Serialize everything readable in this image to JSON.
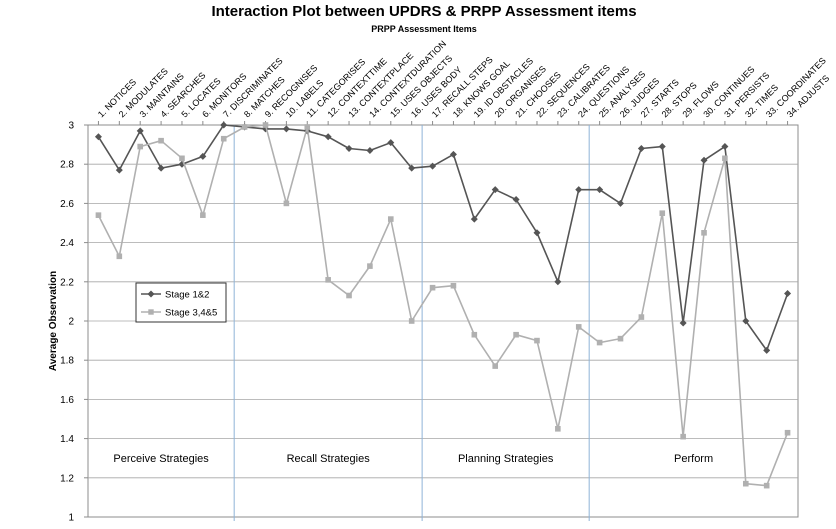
{
  "chart_data": {
    "type": "line",
    "title": "Interaction Plot between UPDRS & PRPP Assessment items",
    "subtitle": "PRPP Assessment Items",
    "xlabel": "PRPP Assessment Items",
    "ylabel": "Average Observation",
    "ylim": [
      1,
      3
    ],
    "yticks": [
      "1",
      "1.2",
      "1.4",
      "1.6",
      "1.8",
      "2",
      "2.2",
      "2.4",
      "2.6",
      "2.8",
      "3"
    ],
    "grid": true,
    "legend_position": "left-middle",
    "categories": [
      "1. NOTICES",
      "2. MODULATES",
      "3. MAINTAINS",
      "4. SEARCHES",
      "5. LOCATES",
      "6. MONITORS",
      "7. DISCRIMINATES",
      "8. MATCHES",
      "9. RECOGNISES",
      "10. LABELS",
      "11. CATEGORISES",
      "12. CONTEXTTIME",
      "13. CONTEXTPLACE",
      "14. CONTEXTDURATION",
      "15. USES OBJECTS",
      "16. USES BODY",
      "17. RECALL STEPS",
      "18. KNOWS GOAL",
      "19. ID OBSTACLES",
      "20. ORGANISES",
      "21. CHOOSES",
      "22. SEQUENCES",
      "23. CALIBRATES",
      "24. QUESTIONS",
      "25. ANALYSES",
      "26. JUDGES",
      "27. STARTS",
      "28. STOPS",
      "29. FLOWS",
      "30. CONTINUES",
      "31. PERSISTS",
      "32. TIMES",
      "33. COORDINATES",
      "34. ADJUSTS"
    ],
    "series": [
      {
        "name": "Stage 1&2",
        "color": "#555555",
        "marker": "diamond",
        "values": [
          2.94,
          2.77,
          2.97,
          2.78,
          2.8,
          2.84,
          3.0,
          2.99,
          2.98,
          2.98,
          2.97,
          2.94,
          2.88,
          2.87,
          2.91,
          2.78,
          2.79,
          2.85,
          2.52,
          2.67,
          2.62,
          2.45,
          2.2,
          2.67,
          2.67,
          2.6,
          2.88,
          2.89,
          1.99,
          2.82,
          2.89,
          2.0,
          1.85,
          2.14
        ]
      },
      {
        "name": "Stage 3,4&5",
        "color": "#b0b0b0",
        "marker": "square",
        "values": [
          2.54,
          2.33,
          2.89,
          2.92,
          2.83,
          2.54,
          2.93,
          2.99,
          3.0,
          2.6,
          2.99,
          2.21,
          2.13,
          2.28,
          2.52,
          2.0,
          2.17,
          2.18,
          1.93,
          1.77,
          1.93,
          1.9,
          1.45,
          1.97,
          1.89,
          1.91,
          2.02,
          2.55,
          1.41,
          2.45,
          2.83,
          1.17,
          1.16,
          1.43
        ]
      }
    ],
    "sections": [
      {
        "label": "Perceive Strategies",
        "start_item": 1,
        "end_item": 7
      },
      {
        "label": "Recall Strategies",
        "start_item": 8,
        "end_item": 16
      },
      {
        "label": "Planning Strategies",
        "start_item": 17,
        "end_item": 24
      },
      {
        "label": "Perform",
        "start_item": 25,
        "end_item": 34
      }
    ],
    "section_divider_color": "#8fb4d8"
  }
}
